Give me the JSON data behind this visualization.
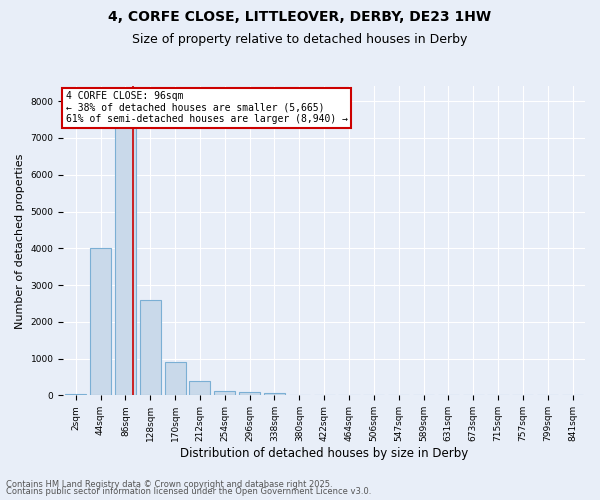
{
  "title1": "4, CORFE CLOSE, LITTLEOVER, DERBY, DE23 1HW",
  "title2": "Size of property relative to detached houses in Derby",
  "xlabel": "Distribution of detached houses by size in Derby",
  "ylabel": "Number of detached properties",
  "categories": [
    "2sqm",
    "44sqm",
    "86sqm",
    "128sqm",
    "170sqm",
    "212sqm",
    "254sqm",
    "296sqm",
    "338sqm",
    "380sqm",
    "422sqm",
    "464sqm",
    "506sqm",
    "547sqm",
    "589sqm",
    "631sqm",
    "673sqm",
    "715sqm",
    "757sqm",
    "799sqm",
    "841sqm"
  ],
  "bar_values": [
    30,
    4000,
    7500,
    2600,
    900,
    400,
    130,
    90,
    60,
    10,
    0,
    0,
    0,
    0,
    0,
    0,
    0,
    0,
    0,
    0,
    0
  ],
  "bar_color": "#c9d9ea",
  "bar_edge_color": "#7bafd4",
  "bar_edge_width": 0.8,
  "vline_pos": 2.3,
  "vline_color": "#cc0000",
  "vline_linewidth": 1.2,
  "annotation_title": "4 CORFE CLOSE: 96sqm",
  "annotation_line1": "← 38% of detached houses are smaller (5,665)",
  "annotation_line2": "61% of semi-detached houses are larger (8,940) →",
  "annotation_box_facecolor": "#ffffff",
  "annotation_box_edgecolor": "#cc0000",
  "ylim_max": 8400,
  "yticks": [
    0,
    1000,
    2000,
    3000,
    4000,
    5000,
    6000,
    7000,
    8000
  ],
  "footer1": "Contains HM Land Registry data © Crown copyright and database right 2025.",
  "footer2": "Contains public sector information licensed under the Open Government Licence v3.0.",
  "bg_color": "#e8eef8",
  "plot_bg_color": "#e8eef8",
  "grid_color": "#ffffff",
  "title1_fontsize": 10,
  "title2_fontsize": 9,
  "ylabel_fontsize": 8,
  "xlabel_fontsize": 8.5,
  "tick_fontsize": 6.5,
  "footer_fontsize": 6,
  "ann_fontsize": 7
}
